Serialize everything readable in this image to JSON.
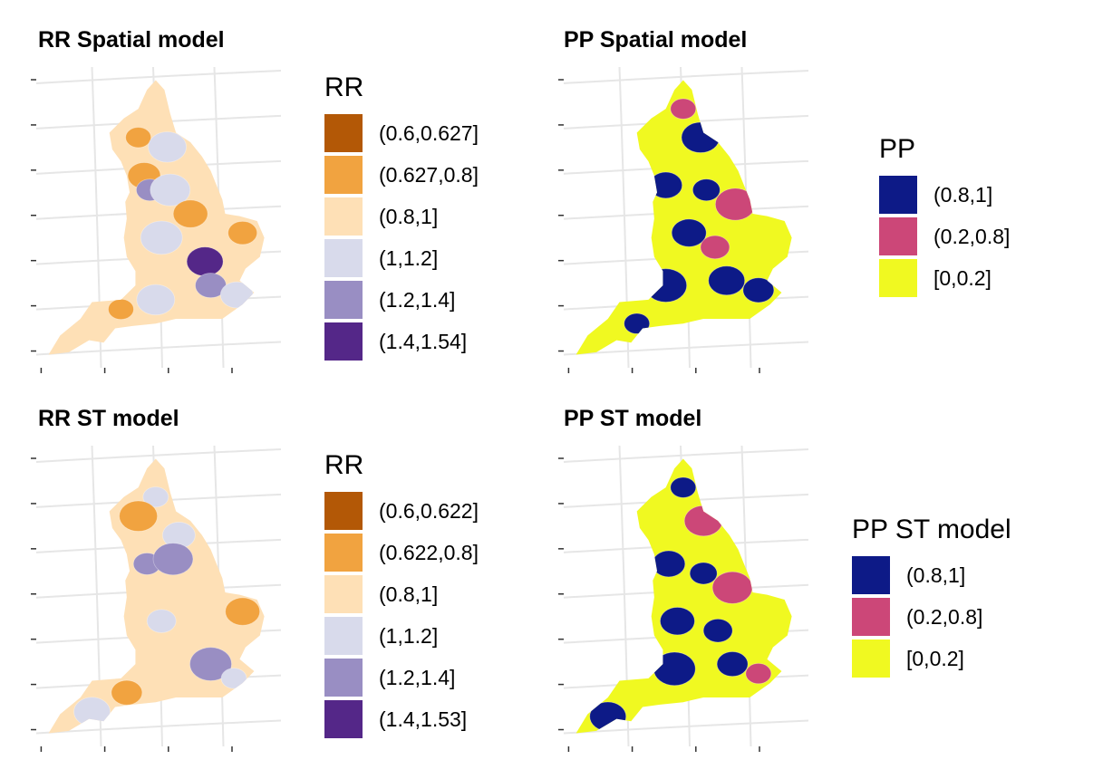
{
  "panels": [
    {
      "title": "RR Spatial model",
      "legend_title": "RR",
      "legend_items": [
        {
          "label": "(0.6,0.627]",
          "color": "#b35806"
        },
        {
          "label": "(0.627,0.8]",
          "color": "#f1a340"
        },
        {
          "label": "(0.8,1]",
          "color": "#fee0b6"
        },
        {
          "label": "(1,1.2]",
          "color": "#d8daeb"
        },
        {
          "label": "(1.2,1.4]",
          "color": "#998ec3"
        },
        {
          "label": "(1.4,1.54]",
          "color": "#542788"
        }
      ],
      "base_color": "#fee0b6",
      "blobs": [
        {
          "lon": -2.6,
          "lat": 54.6,
          "color": "#f1a340"
        },
        {
          "lon": -1.6,
          "lat": 54.4,
          "color": "#d8daeb"
        },
        {
          "lon": -2.4,
          "lat": 53.8,
          "color": "#f1a340"
        },
        {
          "lon": -2.2,
          "lat": 53.5,
          "color": "#998ec3"
        },
        {
          "lon": -1.5,
          "lat": 53.5,
          "color": "#d8daeb"
        },
        {
          "lon": -0.8,
          "lat": 53.0,
          "color": "#f1a340"
        },
        {
          "lon": 1.0,
          "lat": 52.6,
          "color": "#f1a340"
        },
        {
          "lon": -1.8,
          "lat": 52.5,
          "color": "#d8daeb"
        },
        {
          "lon": -0.3,
          "lat": 52.0,
          "color": "#542788"
        },
        {
          "lon": -0.1,
          "lat": 51.5,
          "color": "#998ec3"
        },
        {
          "lon": -3.2,
          "lat": 51.0,
          "color": "#f1a340"
        },
        {
          "lon": -2.0,
          "lat": 51.2,
          "color": "#d8daeb"
        },
        {
          "lon": 0.8,
          "lat": 51.3,
          "color": "#d8daeb"
        }
      ]
    },
    {
      "title": "PP Spatial model",
      "legend_title": "PP",
      "legend_items": [
        {
          "label": "(0.8,1]",
          "color": "#0d1a87"
        },
        {
          "label": "(0.2,0.8]",
          "color": "#cc4778"
        },
        {
          "label": "[0,0.2]",
          "color": "#f0f921"
        }
      ],
      "base_color": "#f0f921",
      "blobs": [
        {
          "lon": -2.0,
          "lat": 55.2,
          "color": "#cc4778"
        },
        {
          "lon": -1.4,
          "lat": 54.6,
          "color": "#0d1a87"
        },
        {
          "lon": -2.6,
          "lat": 53.6,
          "color": "#0d1a87"
        },
        {
          "lon": -1.2,
          "lat": 53.5,
          "color": "#0d1a87"
        },
        {
          "lon": -0.2,
          "lat": 53.2,
          "color": "#cc4778"
        },
        {
          "lon": -1.8,
          "lat": 52.6,
          "color": "#0d1a87"
        },
        {
          "lon": -0.9,
          "lat": 52.3,
          "color": "#cc4778"
        },
        {
          "lon": -2.6,
          "lat": 51.5,
          "color": "#0d1a87"
        },
        {
          "lon": -0.5,
          "lat": 51.6,
          "color": "#0d1a87"
        },
        {
          "lon": 0.6,
          "lat": 51.4,
          "color": "#0d1a87"
        },
        {
          "lon": -3.6,
          "lat": 50.7,
          "color": "#0d1a87"
        }
      ]
    },
    {
      "title": "RR ST model",
      "legend_title": "RR",
      "legend_items": [
        {
          "label": "(0.6,0.622]",
          "color": "#b35806"
        },
        {
          "label": "(0.622,0.8]",
          "color": "#f1a340"
        },
        {
          "label": "(0.8,1]",
          "color": "#fee0b6"
        },
        {
          "label": "(1,1.2]",
          "color": "#d8daeb"
        },
        {
          "label": "(1.2,1.4]",
          "color": "#998ec3"
        },
        {
          "label": "(1.4,1.53]",
          "color": "#542788"
        }
      ],
      "base_color": "#fee0b6",
      "blobs": [
        {
          "lon": -2.0,
          "lat": 55.0,
          "color": "#d8daeb"
        },
        {
          "lon": -2.6,
          "lat": 54.6,
          "color": "#f1a340"
        },
        {
          "lon": -1.2,
          "lat": 54.2,
          "color": "#d8daeb"
        },
        {
          "lon": -2.3,
          "lat": 53.6,
          "color": "#998ec3"
        },
        {
          "lon": -1.4,
          "lat": 53.7,
          "color": "#998ec3"
        },
        {
          "lon": 1.0,
          "lat": 52.6,
          "color": "#f1a340"
        },
        {
          "lon": -1.8,
          "lat": 52.4,
          "color": "#d8daeb"
        },
        {
          "lon": -0.1,
          "lat": 51.5,
          "color": "#998ec3"
        },
        {
          "lon": -4.2,
          "lat": 50.5,
          "color": "#d8daeb"
        },
        {
          "lon": -3.0,
          "lat": 50.9,
          "color": "#f1a340"
        },
        {
          "lon": 0.7,
          "lat": 51.2,
          "color": "#d8daeb"
        }
      ]
    },
    {
      "title": "PP ST model",
      "legend_title": "PP ST model",
      "legend_items": [
        {
          "label": "(0.8,1]",
          "color": "#0d1a87"
        },
        {
          "label": "(0.2,0.8]",
          "color": "#cc4778"
        },
        {
          "label": "[0,0.2]",
          "color": "#f0f921"
        }
      ],
      "base_color": "#f0f921",
      "blobs": [
        {
          "lon": -2.0,
          "lat": 55.2,
          "color": "#0d1a87"
        },
        {
          "lon": -1.3,
          "lat": 54.5,
          "color": "#cc4778"
        },
        {
          "lon": -2.5,
          "lat": 53.6,
          "color": "#0d1a87"
        },
        {
          "lon": -1.3,
          "lat": 53.4,
          "color": "#0d1a87"
        },
        {
          "lon": -0.3,
          "lat": 53.1,
          "color": "#cc4778"
        },
        {
          "lon": -2.2,
          "lat": 52.4,
          "color": "#0d1a87"
        },
        {
          "lon": -0.8,
          "lat": 52.2,
          "color": "#0d1a87"
        },
        {
          "lon": -2.3,
          "lat": 51.4,
          "color": "#0d1a87"
        },
        {
          "lon": -4.6,
          "lat": 50.4,
          "color": "#0d1a87"
        },
        {
          "lon": -0.3,
          "lat": 51.5,
          "color": "#0d1a87"
        },
        {
          "lon": 0.6,
          "lat": 51.3,
          "color": "#cc4778"
        }
      ]
    }
  ],
  "map": {
    "outline": [
      [
        -2.0,
        55.8
      ],
      [
        -1.7,
        55.6
      ],
      [
        -1.5,
        55.1
      ],
      [
        -1.3,
        54.7
      ],
      [
        -0.8,
        54.5
      ],
      [
        -0.4,
        54.2
      ],
      [
        -0.1,
        53.9
      ],
      [
        0.1,
        53.6
      ],
      [
        0.3,
        53.3
      ],
      [
        0.4,
        53.0
      ],
      [
        0.9,
        52.95
      ],
      [
        1.5,
        52.85
      ],
      [
        1.75,
        52.5
      ],
      [
        1.6,
        52.1
      ],
      [
        1.1,
        51.85
      ],
      [
        0.9,
        51.6
      ],
      [
        1.4,
        51.35
      ],
      [
        1.0,
        51.1
      ],
      [
        0.3,
        50.8
      ],
      [
        -0.6,
        50.8
      ],
      [
        -1.3,
        50.8
      ],
      [
        -2.0,
        50.7
      ],
      [
        -2.8,
        50.65
      ],
      [
        -3.4,
        50.6
      ],
      [
        -3.8,
        50.3
      ],
      [
        -4.3,
        50.35
      ],
      [
        -5.0,
        50.1
      ],
      [
        -5.7,
        50.05
      ],
      [
        -5.3,
        50.45
      ],
      [
        -4.6,
        50.8
      ],
      [
        -4.2,
        51.15
      ],
      [
        -3.2,
        51.2
      ],
      [
        -2.7,
        51.5
      ],
      [
        -2.7,
        51.8
      ],
      [
        -3.0,
        52.1
      ],
      [
        -3.1,
        52.5
      ],
      [
        -3.0,
        52.9
      ],
      [
        -3.05,
        53.25
      ],
      [
        -2.9,
        53.45
      ],
      [
        -3.0,
        53.8
      ],
      [
        -3.2,
        54.1
      ],
      [
        -3.5,
        54.35
      ],
      [
        -3.6,
        54.7
      ],
      [
        -3.1,
        55.0
      ],
      [
        -2.6,
        55.2
      ],
      [
        -2.3,
        55.6
      ]
    ]
  }
}
